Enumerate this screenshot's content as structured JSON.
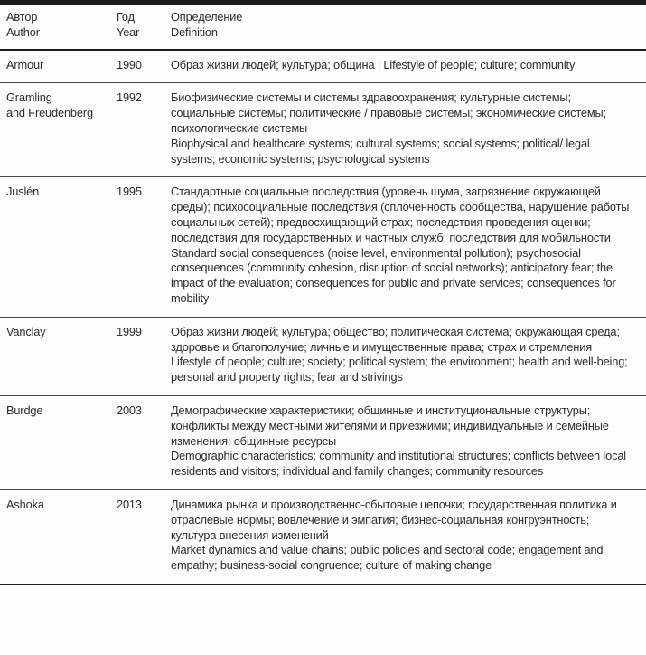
{
  "theme": {
    "background": "#fcfcfc",
    "text_color": "#2d2d2d",
    "rule_color_heavy": "#1e1b1b",
    "rule_color_light": "#474747"
  },
  "table": {
    "header": {
      "author_ru": "Автор",
      "author_en": "Author",
      "year_ru": "Год",
      "year_en": "Year",
      "definition_ru": "Определение",
      "definition_en": "Definition"
    },
    "rows": [
      {
        "author_lines": [
          "Armour"
        ],
        "year": "1990",
        "definition_paragraphs": [
          "Образ жизни людей; культура; община | Lifestyle of people; culture; community"
        ]
      },
      {
        "author_lines": [
          "Gramling",
          "and Freudenberg"
        ],
        "year": "1992",
        "definition_paragraphs": [
          "Биофизические системы и системы здравоохранения; культурные системы; социальные системы; политические / правовые системы; экономические системы; психологические системы",
          "Biophysical and healthcare systems; cultural systems; social systems; political/ legal systems; economic systems; psychological systems"
        ]
      },
      {
        "author_lines": [
          "Juslén"
        ],
        "year": "1995",
        "definition_paragraphs": [
          "Стандартные социальные последствия (уровень шума, загрязнение окружающей среды); психосоциальные последствия (сплоченность сообщества, нарушение работы социальных сетей); предвосхищающий страх; последствия проведения оценки; последствия для государственных и частных служб; последствия для мобильности",
          "Standard social consequences (noise level, environmental pollution); psychosocial consequences (community cohesion, disruption of social networks); anticipatory fear; the impact of the evaluation; consequences for public and private services; consequences for mobility"
        ]
      },
      {
        "author_lines": [
          "Vanclay"
        ],
        "year": "1999",
        "definition_paragraphs": [
          "Образ жизни людей; культура; общество; политическая система; окружающая среда; здоровье и благополучие; личные и имущественные права; страх и стремления",
          "Lifestyle of people; culture; society; political system; the environment; health and well-being; personal and property rights; fear and strivings"
        ]
      },
      {
        "author_lines": [
          "Burdge"
        ],
        "year": "2003",
        "definition_paragraphs": [
          "Демографические характеристики; общинные и институциональные структуры; конфликты между местными жителями и приезжими; индивидуальные и семейные изменения; общинные ресурсы",
          "Demographic characteristics; community and institutional structures; conflicts between local residents and visitors; individual and family changes; community resources"
        ]
      },
      {
        "author_lines": [
          "Ashoka"
        ],
        "year": "2013",
        "definition_paragraphs": [
          "Динамика рынка и производственно-сбытовые цепочки; государственная политика и отраслевые нормы; вовлечение и эмпатия; бизнес-социальная конгруэнтность; культура внесения изменений",
          "Market dynamics and value chains; public policies and sectoral code; engagement and empathy; business-social congruence; culture of making change"
        ]
      }
    ]
  }
}
